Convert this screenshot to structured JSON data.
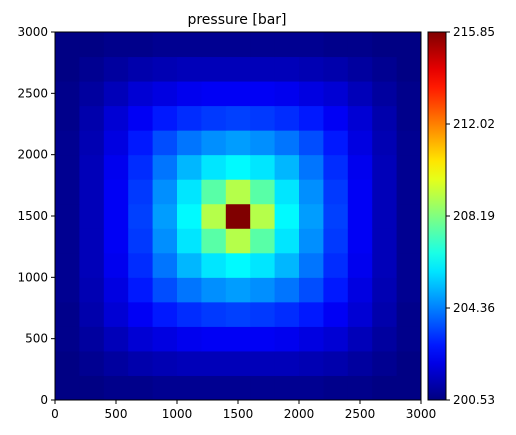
{
  "chart_data": {
    "type": "heatmap",
    "title": "pressure [bar]",
    "xlabel": "",
    "ylabel": "",
    "colormap": "jet",
    "grid": false,
    "xlim": [
      0,
      3000
    ],
    "ylim": [
      0,
      3000
    ],
    "x_ticks": [
      0,
      500,
      1000,
      1500,
      2000,
      2500,
      3000
    ],
    "y_ticks": [
      0,
      500,
      1000,
      1500,
      2000,
      2500,
      3000
    ],
    "x_tick_labels": [
      "0",
      "500",
      "1000",
      "1500",
      "2000",
      "2500",
      "3000"
    ],
    "y_tick_labels": [
      "0",
      "500",
      "1000",
      "1500",
      "2000",
      "2500",
      "3000"
    ],
    "grid_cells": 15,
    "cell_size": 200,
    "colorbar": {
      "placement": "right",
      "min": 200.53,
      "max": 215.85,
      "ticks": [
        200.53,
        204.36,
        208.19,
        212.02,
        215.85
      ],
      "tick_labels": [
        "200.53",
        "204.36",
        "208.19",
        "212.02",
        "215.85"
      ]
    },
    "values": [
      [
        200.6,
        200.6,
        200.7,
        200.7,
        200.8,
        200.8,
        200.8,
        200.8,
        200.8,
        200.8,
        200.8,
        200.7,
        200.7,
        200.6,
        200.6
      ],
      [
        200.6,
        200.8,
        201.0,
        201.2,
        201.3,
        201.4,
        201.4,
        201.4,
        201.4,
        201.4,
        201.3,
        201.2,
        201.0,
        200.8,
        200.6
      ],
      [
        200.7,
        201.0,
        201.4,
        201.8,
        202.0,
        202.2,
        202.3,
        202.3,
        202.3,
        202.2,
        202.0,
        201.8,
        201.4,
        201.0,
        200.7
      ],
      [
        200.7,
        201.2,
        201.8,
        202.3,
        202.8,
        203.1,
        203.3,
        203.4,
        203.3,
        203.1,
        202.8,
        202.3,
        201.8,
        201.2,
        200.7
      ],
      [
        200.8,
        201.3,
        202.0,
        202.8,
        203.6,
        204.2,
        204.6,
        204.8,
        204.6,
        204.2,
        203.6,
        202.8,
        202.0,
        201.3,
        200.8
      ],
      [
        200.8,
        201.4,
        202.2,
        203.1,
        204.2,
        205.2,
        205.9,
        206.2,
        205.9,
        205.2,
        204.2,
        203.1,
        202.2,
        201.4,
        200.8
      ],
      [
        200.8,
        201.4,
        202.3,
        203.3,
        204.6,
        205.9,
        207.6,
        209.0,
        207.6,
        205.9,
        204.6,
        203.3,
        202.3,
        201.4,
        200.8
      ],
      [
        200.8,
        201.4,
        202.3,
        203.4,
        204.8,
        206.2,
        209.0,
        215.85,
        209.0,
        206.2,
        204.8,
        203.4,
        202.3,
        201.4,
        200.8
      ],
      [
        200.8,
        201.4,
        202.3,
        203.3,
        204.6,
        205.9,
        207.6,
        209.0,
        207.6,
        205.9,
        204.6,
        203.3,
        202.3,
        201.4,
        200.8
      ],
      [
        200.8,
        201.4,
        202.2,
        203.1,
        204.2,
        205.2,
        205.9,
        206.2,
        205.9,
        205.2,
        204.2,
        203.1,
        202.2,
        201.4,
        200.8
      ],
      [
        200.8,
        201.3,
        202.0,
        202.8,
        203.6,
        204.2,
        204.6,
        204.8,
        204.6,
        204.2,
        203.6,
        202.8,
        202.0,
        201.3,
        200.8
      ],
      [
        200.7,
        201.2,
        201.8,
        202.3,
        202.8,
        203.1,
        203.3,
        203.4,
        203.3,
        203.1,
        202.8,
        202.3,
        201.8,
        201.2,
        200.7
      ],
      [
        200.7,
        201.0,
        201.4,
        201.8,
        202.0,
        202.2,
        202.3,
        202.3,
        202.3,
        202.2,
        202.0,
        201.8,
        201.4,
        201.0,
        200.7
      ],
      [
        200.6,
        200.8,
        201.0,
        201.2,
        201.3,
        201.4,
        201.4,
        201.4,
        201.4,
        201.4,
        201.3,
        201.2,
        201.0,
        200.8,
        200.6
      ],
      [
        200.6,
        200.6,
        200.7,
        200.7,
        200.8,
        200.8,
        200.8,
        200.8,
        200.8,
        200.8,
        200.8,
        200.7,
        200.7,
        200.6,
        200.6
      ]
    ]
  }
}
